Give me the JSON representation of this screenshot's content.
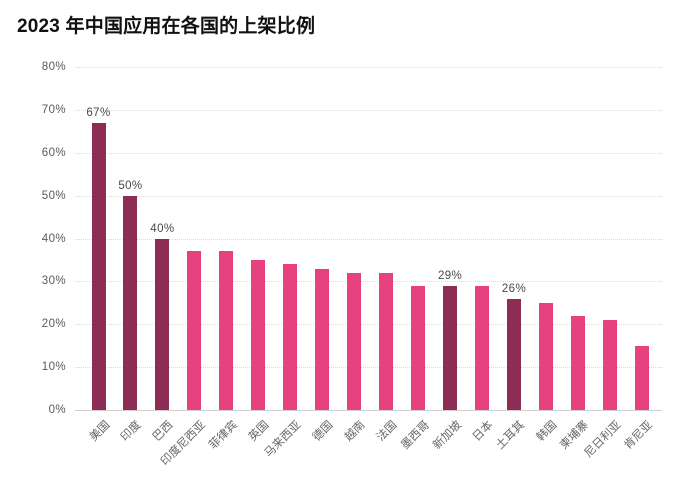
{
  "page": {
    "background": "#ffffff"
  },
  "chart_data": {
    "type": "bar",
    "title": "2023 年中国应用在各国的上架比例",
    "xlabel": "",
    "ylabel": "",
    "ylim": [
      0,
      80
    ],
    "ytick_step": 10,
    "ytick_suffix": "%",
    "grid": "horizontal-dotted",
    "legend": "none",
    "colors": {
      "bar": "#E8417F",
      "bar_highlight": "#8C2D55",
      "gridline": "#d9d9d9",
      "axis_line": "#cfcfcf",
      "axis_text": "#5a5a5a",
      "category_text": "#666666",
      "value_label_text": "#4a4a4a",
      "title_text": "#111111",
      "background": "#ffffff"
    },
    "categories": [
      "美国",
      "印度",
      "巴西",
      "印度尼西亚",
      "菲律宾",
      "英国",
      "马来西亚",
      "德国",
      "越南",
      "法国",
      "墨西哥",
      "新加坡",
      "日本",
      "土耳其",
      "韩国",
      "柬埔寨",
      "尼日利亚",
      "肯尼亚"
    ],
    "values": [
      67,
      50,
      40,
      37,
      37,
      35,
      34,
      33,
      32,
      32,
      29,
      29,
      29,
      26,
      25,
      22,
      21,
      15
    ],
    "ytick_labels": [
      "0%",
      "10%",
      "20%",
      "30%",
      "40%",
      "50%",
      "60%",
      "70%",
      "80%"
    ],
    "bars": [
      {
        "label": "美国",
        "value": 67,
        "value_label": "67%",
        "highlighted": true,
        "show_value": true
      },
      {
        "label": "印度",
        "value": 50,
        "value_label": "50%",
        "highlighted": true,
        "show_value": true
      },
      {
        "label": "巴西",
        "value": 40,
        "value_label": "40%",
        "highlighted": true,
        "show_value": true
      },
      {
        "label": "印度尼西亚",
        "value": 37,
        "value_label": "37%",
        "highlighted": false,
        "show_value": false
      },
      {
        "label": "菲律宾",
        "value": 37,
        "value_label": "37%",
        "highlighted": false,
        "show_value": false
      },
      {
        "label": "英国",
        "value": 35,
        "value_label": "35%",
        "highlighted": false,
        "show_value": false
      },
      {
        "label": "马来西亚",
        "value": 34,
        "value_label": "34%",
        "highlighted": false,
        "show_value": false
      },
      {
        "label": "德国",
        "value": 33,
        "value_label": "33%",
        "highlighted": false,
        "show_value": false
      },
      {
        "label": "越南",
        "value": 32,
        "value_label": "32%",
        "highlighted": false,
        "show_value": false
      },
      {
        "label": "法国",
        "value": 32,
        "value_label": "32%",
        "highlighted": false,
        "show_value": false
      },
      {
        "label": "墨西哥",
        "value": 29,
        "value_label": "29%",
        "highlighted": false,
        "show_value": false
      },
      {
        "label": "新加坡",
        "value": 29,
        "value_label": "29%",
        "highlighted": true,
        "show_value": true
      },
      {
        "label": "日本",
        "value": 29,
        "value_label": "29%",
        "highlighted": false,
        "show_value": false
      },
      {
        "label": "土耳其",
        "value": 26,
        "value_label": "26%",
        "highlighted": true,
        "show_value": true
      },
      {
        "label": "韩国",
        "value": 25,
        "value_label": "25%",
        "highlighted": false,
        "show_value": false
      },
      {
        "label": "柬埔寨",
        "value": 22,
        "value_label": "22%",
        "highlighted": false,
        "show_value": false
      },
      {
        "label": "尼日利亚",
        "value": 21,
        "value_label": "21%",
        "highlighted": false,
        "show_value": false
      },
      {
        "label": "肯尼亚",
        "value": 15,
        "value_label": "15%",
        "highlighted": false,
        "show_value": false
      }
    ]
  }
}
